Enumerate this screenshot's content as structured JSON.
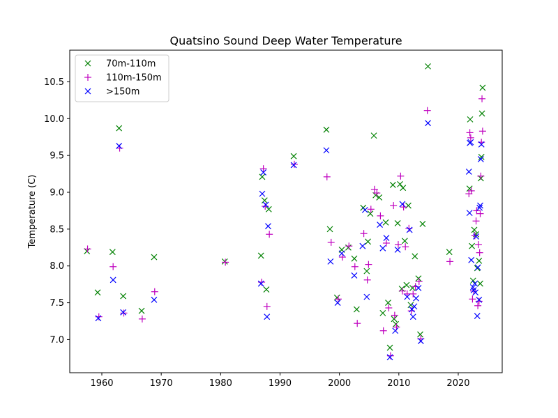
{
  "chart_data": {
    "type": "scatter",
    "title": "Quatsino Sound Deep Water Temperature",
    "xlabel": "",
    "ylabel": "Temperature (C)",
    "xlim": [
      1954.6,
      2027.4
    ],
    "ylim": [
      6.55,
      10.93
    ],
    "x_ticks": [
      1960,
      1970,
      1980,
      1990,
      2000,
      2010,
      2020
    ],
    "y_ticks": [
      7.0,
      7.5,
      8.0,
      8.5,
      9.0,
      9.5,
      10.0,
      10.5
    ],
    "grid": false,
    "legend_position": "top-left",
    "series": [
      {
        "name": "70m-110m",
        "marker": "x",
        "color": "#008000",
        "points": [
          [
            1957.5,
            8.2
          ],
          [
            1959.3,
            7.64
          ],
          [
            1961.8,
            8.19
          ],
          [
            1962.9,
            9.87
          ],
          [
            1963.6,
            7.59
          ],
          [
            1966.7,
            7.39
          ],
          [
            1968.8,
            8.12
          ],
          [
            1980.7,
            8.06
          ],
          [
            1986.8,
            8.14
          ],
          [
            1987.0,
            9.21
          ],
          [
            1987.4,
            8.89
          ],
          [
            1987.7,
            7.68
          ],
          [
            1988.1,
            8.77
          ],
          [
            1992.3,
            9.49
          ],
          [
            1997.8,
            9.85
          ],
          [
            1998.4,
            8.5
          ],
          [
            1999.6,
            7.57
          ],
          [
            2000.4,
            8.22
          ],
          [
            2001.5,
            8.25
          ],
          [
            2002.5,
            8.1
          ],
          [
            2002.9,
            7.41
          ],
          [
            2004.0,
            8.79
          ],
          [
            2004.6,
            7.93
          ],
          [
            2004.8,
            8.33
          ],
          [
            2005.2,
            8.71
          ],
          [
            2005.8,
            9.77
          ],
          [
            2006.1,
            8.96
          ],
          [
            2006.7,
            8.93
          ],
          [
            2007.3,
            7.36
          ],
          [
            2007.8,
            8.59
          ],
          [
            2008.2,
            7.5
          ],
          [
            2008.5,
            6.89
          ],
          [
            2009.0,
            9.1
          ],
          [
            2009.2,
            7.28
          ],
          [
            2009.5,
            7.21
          ],
          [
            2009.8,
            8.58
          ],
          [
            2010.2,
            9.11
          ],
          [
            2010.5,
            7.69
          ],
          [
            2010.7,
            9.06
          ],
          [
            2011.0,
            8.34
          ],
          [
            2011.3,
            7.74
          ],
          [
            2011.6,
            8.82
          ],
          [
            2012.0,
            7.47
          ],
          [
            2012.3,
            7.7
          ],
          [
            2012.7,
            8.13
          ],
          [
            2013.3,
            7.83
          ],
          [
            2013.6,
            7.07
          ],
          [
            2014.0,
            8.57
          ],
          [
            2014.9,
            10.71
          ],
          [
            2018.5,
            8.19
          ],
          [
            2021.9,
            9.05
          ],
          [
            2022.0,
            9.99
          ],
          [
            2022.3,
            8.27
          ],
          [
            2022.5,
            7.8
          ],
          [
            2022.7,
            8.49
          ],
          [
            2023.0,
            8.43
          ],
          [
            2023.2,
            7.97
          ],
          [
            2023.5,
            8.07
          ],
          [
            2023.7,
            7.76
          ],
          [
            2023.8,
            9.19
          ],
          [
            2023.9,
            9.48
          ],
          [
            2024.0,
            10.07
          ],
          [
            2024.1,
            10.42
          ]
        ]
      },
      {
        "name": "110m-150m",
        "marker": "+",
        "color": "#bf00bf",
        "points": [
          [
            1957.6,
            8.23
          ],
          [
            1959.5,
            7.31
          ],
          [
            1961.9,
            7.99
          ],
          [
            1963.0,
            9.6
          ],
          [
            1963.7,
            7.36
          ],
          [
            1966.8,
            7.28
          ],
          [
            1968.9,
            7.65
          ],
          [
            1980.8,
            8.05
          ],
          [
            1986.9,
            7.78
          ],
          [
            1987.2,
            9.32
          ],
          [
            1987.5,
            8.81
          ],
          [
            1987.8,
            7.45
          ],
          [
            1988.2,
            8.43
          ],
          [
            1992.4,
            9.38
          ],
          [
            1997.9,
            9.21
          ],
          [
            1998.6,
            8.32
          ],
          [
            1999.8,
            7.55
          ],
          [
            2000.5,
            8.12
          ],
          [
            2001.6,
            8.27
          ],
          [
            2002.6,
            7.99
          ],
          [
            2003.0,
            7.22
          ],
          [
            2004.1,
            8.44
          ],
          [
            2004.7,
            7.81
          ],
          [
            2004.9,
            8.02
          ],
          [
            2005.3,
            8.77
          ],
          [
            2005.9,
            9.04
          ],
          [
            2006.3,
            8.99
          ],
          [
            2006.9,
            8.68
          ],
          [
            2007.4,
            7.12
          ],
          [
            2007.9,
            8.31
          ],
          [
            2008.3,
            7.43
          ],
          [
            2008.6,
            6.78
          ],
          [
            2009.1,
            8.82
          ],
          [
            2009.3,
            7.33
          ],
          [
            2009.6,
            7.17
          ],
          [
            2009.9,
            8.29
          ],
          [
            2010.3,
            9.22
          ],
          [
            2010.6,
            7.66
          ],
          [
            2010.8,
            8.8
          ],
          [
            2011.1,
            8.26
          ],
          [
            2011.4,
            7.62
          ],
          [
            2011.7,
            8.51
          ],
          [
            2012.1,
            7.39
          ],
          [
            2012.4,
            7.62
          ],
          [
            2012.8,
            7.72
          ],
          [
            2013.4,
            7.79
          ],
          [
            2013.7,
            7.01
          ],
          [
            2014.8,
            10.11
          ],
          [
            2018.6,
            8.06
          ],
          [
            2021.8,
            8.98
          ],
          [
            2021.95,
            9.81
          ],
          [
            2022.1,
            9.74
          ],
          [
            2022.2,
            9.02
          ],
          [
            2022.4,
            7.55
          ],
          [
            2022.6,
            7.66
          ],
          [
            2022.8,
            8.41
          ],
          [
            2023.0,
            8.61
          ],
          [
            2023.1,
            8.75
          ],
          [
            2023.3,
            7.46
          ],
          [
            2023.4,
            8.29
          ],
          [
            2023.5,
            7.52
          ],
          [
            2023.6,
            8.18
          ],
          [
            2023.7,
            8.71
          ],
          [
            2023.8,
            9.22
          ],
          [
            2023.9,
            9.68
          ],
          [
            2024.0,
            10.27
          ],
          [
            2024.1,
            9.83
          ]
        ]
      },
      {
        "name": ">150m",
        "marker": "x",
        "color": "#0000ff",
        "points": [
          [
            1959.4,
            7.29
          ],
          [
            1961.9,
            7.81
          ],
          [
            1962.9,
            9.63
          ],
          [
            1963.6,
            7.37
          ],
          [
            1968.8,
            7.54
          ],
          [
            1986.8,
            7.76
          ],
          [
            1987.0,
            8.98
          ],
          [
            1987.2,
            9.27
          ],
          [
            1987.6,
            8.83
          ],
          [
            1987.8,
            7.31
          ],
          [
            1988.0,
            8.54
          ],
          [
            1992.3,
            9.37
          ],
          [
            1997.8,
            9.57
          ],
          [
            1998.5,
            8.06
          ],
          [
            1999.7,
            7.5
          ],
          [
            2000.4,
            8.17
          ],
          [
            2002.5,
            7.87
          ],
          [
            2003.9,
            8.27
          ],
          [
            2004.3,
            8.76
          ],
          [
            2004.6,
            7.58
          ],
          [
            2006.8,
            8.56
          ],
          [
            2007.3,
            8.24
          ],
          [
            2007.9,
            8.38
          ],
          [
            2008.5,
            6.76
          ],
          [
            2009.4,
            7.12
          ],
          [
            2009.8,
            8.22
          ],
          [
            2010.6,
            8.84
          ],
          [
            2011.4,
            7.58
          ],
          [
            2011.8,
            8.49
          ],
          [
            2012.2,
            7.41
          ],
          [
            2012.4,
            7.31
          ],
          [
            2012.6,
            7.45
          ],
          [
            2012.9,
            7.56
          ],
          [
            2013.3,
            7.7
          ],
          [
            2013.7,
            6.98
          ],
          [
            2014.9,
            9.94
          ],
          [
            2021.8,
            9.28
          ],
          [
            2021.9,
            8.72
          ],
          [
            2021.95,
            9.67
          ],
          [
            2022.1,
            9.68
          ],
          [
            2022.2,
            8.08
          ],
          [
            2022.5,
            7.71
          ],
          [
            2022.6,
            7.67
          ],
          [
            2022.8,
            7.76
          ],
          [
            2022.9,
            7.64
          ],
          [
            2023.0,
            8.4
          ],
          [
            2023.2,
            7.32
          ],
          [
            2023.3,
            7.98
          ],
          [
            2023.5,
            7.54
          ],
          [
            2023.6,
            8.79
          ],
          [
            2023.7,
            8.82
          ],
          [
            2023.8,
            9.45
          ],
          [
            2023.9,
            9.65
          ]
        ]
      }
    ]
  }
}
